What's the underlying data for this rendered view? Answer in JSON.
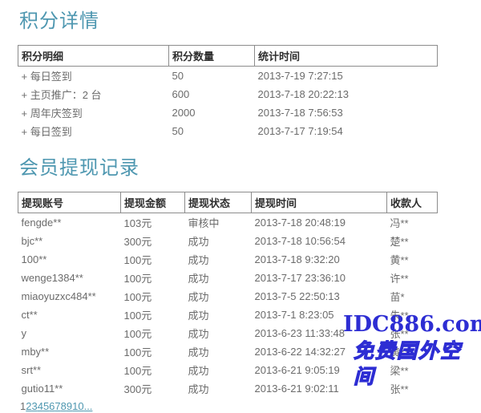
{
  "page": {
    "background": "#ffffff",
    "accent_color": "#4e97b0",
    "watermark_color": "#2d2dd3"
  },
  "points_section": {
    "title": "积分详情",
    "table": {
      "headers": [
        "积分明细",
        "积分数量",
        "统计时间"
      ],
      "rows": [
        [
          "+ 每日签到",
          "50",
          "2013-7-19 7:27:15"
        ],
        [
          "+ 主页推广：2 台",
          "600",
          "2013-7-18 20:22:13"
        ],
        [
          "+ 周年庆签到",
          "2000",
          "2013-7-18 7:56:53"
        ],
        [
          "+ 每日签到",
          "50",
          "2013-7-17 7:19:54"
        ]
      ]
    }
  },
  "withdraw_section": {
    "title": "会员提现记录",
    "table": {
      "headers": [
        "提现账号",
        "提现金额",
        "提现状态",
        "提现时间",
        "收款人"
      ],
      "rows": [
        [
          "fengde**",
          "103元",
          "审核中",
          "2013-7-18 20:48:19",
          "冯**"
        ],
        [
          "bjc**",
          "300元",
          "成功",
          "2013-7-18 10:56:54",
          "楚**"
        ],
        [
          "100**",
          "100元",
          "成功",
          "2013-7-18 9:32:20",
          "黄**"
        ],
        [
          "wenge1384**",
          "100元",
          "成功",
          "2013-7-17 23:36:10",
          "许**"
        ],
        [
          "miaoyuzxc484**",
          "100元",
          "成功",
          "2013-7-5 22:50:13",
          "苗*"
        ],
        [
          "ct**",
          "100元",
          "成功",
          "2013-7-1 8:23:05",
          "朱**"
        ],
        [
          "y",
          "100元",
          "成功",
          "2013-6-23 11:33:48",
          "张**"
        ],
        [
          "mby**",
          "100元",
          "成功",
          "2013-6-22 14:32:27",
          "黄**"
        ],
        [
          "srt**",
          "100元",
          "成功",
          "2013-6-21 9:05:19",
          "梁**"
        ],
        [
          "gutio11**",
          "300元",
          "成功",
          "2013-6-21 9:02:11",
          "张**"
        ]
      ]
    },
    "pagination": {
      "current": "1",
      "links": [
        "2",
        "3",
        "4",
        "5",
        "6",
        "7",
        "8",
        "9",
        "10",
        "..."
      ]
    }
  },
  "watermark": {
    "line1": "IDC886.com",
    "line2": "免费国外空间"
  }
}
